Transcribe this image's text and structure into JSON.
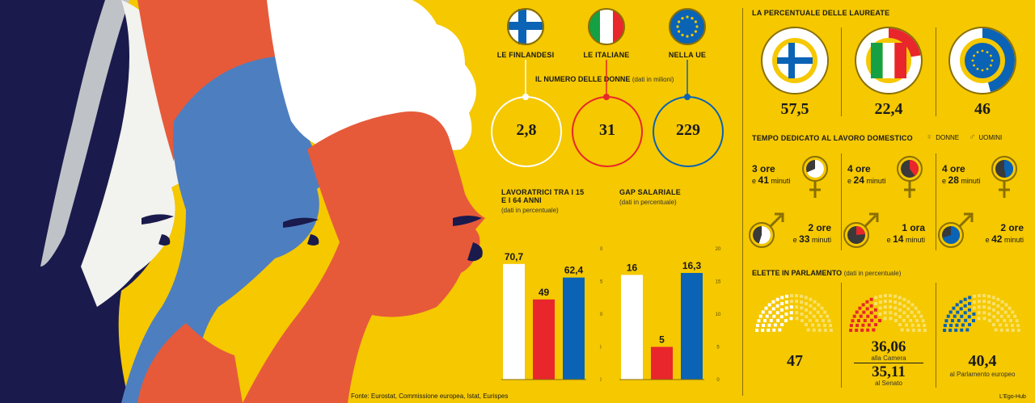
{
  "colors": {
    "background": "#f5c800",
    "white": "#ffffff",
    "red": "#e8262b",
    "blue": "#0a63b5",
    "navy": "#1a1a4d",
    "coral": "#e65a3a"
  },
  "countries": [
    {
      "label": "LE FINLANDESI",
      "flag": "finland-flag-icon"
    },
    {
      "label": "LE ITALIANE",
      "flag": "italy-flag-icon"
    },
    {
      "label": "NELLA UE",
      "flag": "eu-flag-icon"
    }
  ],
  "women_count": {
    "title": "IL NUMERO  DELLE DONNE",
    "unit": "(dati in milioni)",
    "values": [
      "2,8",
      "31",
      "229"
    ]
  },
  "graduates": {
    "title": "LA PERCENTUALE DELLE LAUREATE",
    "values": [
      "57,5",
      "22,4",
      "46"
    ],
    "shares": [
      0.575,
      0.224,
      0.46
    ]
  },
  "housework": {
    "title": "TEMPO DEDICATO AL LAVORO DOMESTICO",
    "legend_women": "DONNE",
    "legend_men": "UOMINI",
    "women": [
      {
        "hours": "3 ore",
        "minutes": "41",
        "unit": "minuti",
        "prefix": "e"
      },
      {
        "hours": "4 ore",
        "minutes": "24",
        "unit": "minuti",
        "prefix": "e"
      },
      {
        "hours": "4 ore",
        "minutes": "28",
        "unit": "minuti",
        "prefix": "e"
      }
    ],
    "men": [
      {
        "hours": "2 ore",
        "minutes": "33",
        "unit": "minuti",
        "prefix": "e"
      },
      {
        "hours": "1 ora",
        "minutes": "14",
        "unit": "minuti",
        "prefix": "e"
      },
      {
        "hours": "2 ore",
        "minutes": "42",
        "unit": "minuti",
        "prefix": "e"
      }
    ]
  },
  "parliament": {
    "title": "ELETTE IN PARLAMENTO",
    "unit": "(dati in percentuale)",
    "fi_value": "47",
    "it_camera": "36,06",
    "it_camera_label": "alla Camera",
    "it_senato": "35,11",
    "it_senato_label": "al Senato",
    "eu_value": "40,4",
    "eu_label": "al Parlamento europeo"
  },
  "footer": {
    "source": "Fonte: Eurostat, Commissione europea, Istat, Eurispes",
    "credit": "L'Ego-Hub"
  },
  "chart_data": [
    {
      "type": "bar",
      "title": "LAVORATRICI TRA I 15 E I 64 ANNI",
      "subtitle": "(dati in percentuale)",
      "categories": [
        "LE FINLANDESI",
        "LE ITALIANE",
        "NELLA UE"
      ],
      "values": [
        70.7,
        49,
        62.4
      ],
      "value_labels": [
        "70,7",
        "49",
        "62,4"
      ],
      "colors": [
        "#ffffff",
        "#e8262b",
        "#0a63b5"
      ],
      "ylim": [
        0,
        80
      ],
      "yticks": [
        0,
        20,
        40,
        60,
        80
      ],
      "ytick_labels": [
        "0",
        "20",
        "40",
        "60",
        "80"
      ]
    },
    {
      "type": "bar",
      "title": "GAP SALARIALE",
      "subtitle": "(dati in percentuale)",
      "categories": [
        "LE FINLANDESI",
        "LE ITALIANE",
        "NELLA UE"
      ],
      "values": [
        16,
        5,
        16.3
      ],
      "value_labels": [
        "16",
        "5",
        "16,3"
      ],
      "colors": [
        "#ffffff",
        "#e8262b",
        "#0a63b5"
      ],
      "ylim": [
        0,
        20
      ],
      "yticks": [
        0,
        5,
        10,
        15,
        20
      ],
      "ytick_labels": [
        "0",
        "5",
        "10",
        "15",
        "20"
      ]
    }
  ]
}
